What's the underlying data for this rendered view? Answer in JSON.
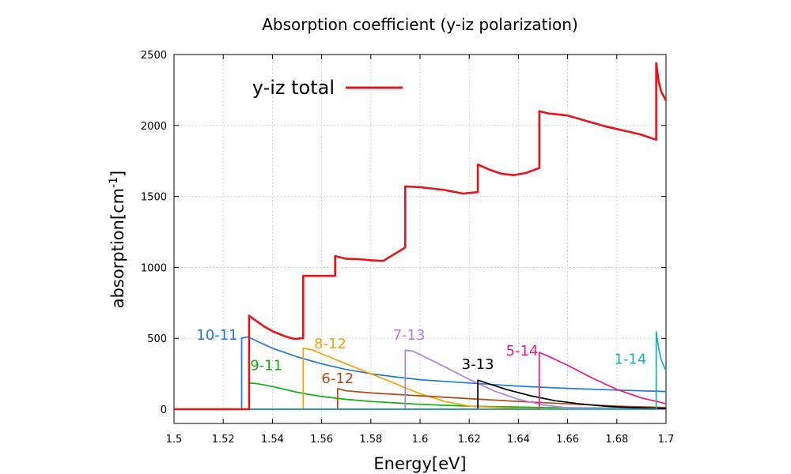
{
  "chart_data": {
    "type": "line",
    "title": "Absorption coefficient (y-iz polarization)",
    "xlabel": "Energy[eV]",
    "ylabel_base": "absorption[cm",
    "ylabel_sup": "-1",
    "ylabel_close": "]",
    "xlim": [
      1.5,
      1.7
    ],
    "ylim": [
      -100,
      2500
    ],
    "xticks": [
      "1.5",
      "1.52",
      "1.54",
      "1.56",
      "1.58",
      "1.6",
      "1.62",
      "1.64",
      "1.66",
      "1.68",
      "1.7"
    ],
    "yticks": [
      "0",
      "500",
      "1000",
      "1500",
      "2000",
      "2500"
    ],
    "grid": true,
    "legend_position": "top-left",
    "series": [
      {
        "name": "y-iz total",
        "color": "#e8141a",
        "points": [
          [
            1.5,
            0
          ],
          [
            1.5305,
            0
          ],
          [
            1.5305,
            660
          ],
          [
            1.532,
            640
          ],
          [
            1.536,
            590
          ],
          [
            1.54,
            550
          ],
          [
            1.545,
            515
          ],
          [
            1.549,
            495
          ],
          [
            1.552,
            500
          ],
          [
            1.5525,
            500
          ],
          [
            1.5525,
            940
          ],
          [
            1.556,
            940
          ],
          [
            1.5655,
            940
          ],
          [
            1.5655,
            1080
          ],
          [
            1.57,
            1060
          ],
          [
            1.575,
            1058
          ],
          [
            1.58,
            1050
          ],
          [
            1.585,
            1045
          ],
          [
            1.594,
            1140
          ],
          [
            1.594,
            1570
          ],
          [
            1.6,
            1565
          ],
          [
            1.61,
            1545
          ],
          [
            1.6175,
            1520
          ],
          [
            1.6235,
            1530
          ],
          [
            1.6235,
            1725
          ],
          [
            1.628,
            1690
          ],
          [
            1.633,
            1660
          ],
          [
            1.638,
            1650
          ],
          [
            1.643,
            1665
          ],
          [
            1.6485,
            1700
          ],
          [
            1.6485,
            2100
          ],
          [
            1.652,
            2085
          ],
          [
            1.656,
            2078
          ],
          [
            1.66,
            2070
          ],
          [
            1.665,
            2045
          ],
          [
            1.67,
            2020
          ],
          [
            1.675,
            1995
          ],
          [
            1.68,
            1975
          ],
          [
            1.685,
            1955
          ],
          [
            1.69,
            1935
          ],
          [
            1.695,
            1905
          ],
          [
            1.696,
            1900
          ],
          [
            1.696,
            2440
          ],
          [
            1.697,
            2310
          ],
          [
            1.698,
            2240
          ],
          [
            1.7,
            2175
          ]
        ]
      },
      {
        "name": "10-11",
        "color": "#1f77e0",
        "points": [
          [
            1.5,
            0
          ],
          [
            1.5275,
            0
          ],
          [
            1.5275,
            500
          ],
          [
            1.53,
            510
          ],
          [
            1.535,
            470
          ],
          [
            1.54,
            430
          ],
          [
            1.55,
            370
          ],
          [
            1.56,
            320
          ],
          [
            1.57,
            280
          ],
          [
            1.58,
            250
          ],
          [
            1.59,
            228
          ],
          [
            1.6,
            208
          ],
          [
            1.62,
            185
          ],
          [
            1.64,
            163
          ],
          [
            1.66,
            147
          ],
          [
            1.68,
            135
          ],
          [
            1.7,
            125
          ]
        ]
      },
      {
        "name": "9-11",
        "color": "#10b010",
        "points": [
          [
            1.5,
            0
          ],
          [
            1.5305,
            0
          ],
          [
            1.5305,
            185
          ],
          [
            1.534,
            180
          ],
          [
            1.54,
            160
          ],
          [
            1.55,
            120
          ],
          [
            1.56,
            90
          ],
          [
            1.57,
            70
          ],
          [
            1.58,
            55
          ],
          [
            1.6,
            35
          ],
          [
            1.62,
            22
          ],
          [
            1.65,
            12
          ],
          [
            1.7,
            5
          ]
        ]
      },
      {
        "name": "8-12",
        "color": "#f5a20a",
        "points": [
          [
            1.5,
            0
          ],
          [
            1.5525,
            0
          ],
          [
            1.5525,
            430
          ],
          [
            1.556,
            420
          ],
          [
            1.56,
            390
          ],
          [
            1.57,
            320
          ],
          [
            1.58,
            250
          ],
          [
            1.59,
            180
          ],
          [
            1.6,
            110
          ],
          [
            1.61,
            55
          ],
          [
            1.62,
            22
          ],
          [
            1.64,
            6
          ],
          [
            1.7,
            0
          ]
        ]
      },
      {
        "name": "6-12",
        "color": "#b04a15",
        "points": [
          [
            1.5,
            0
          ],
          [
            1.5665,
            0
          ],
          [
            1.5665,
            145
          ],
          [
            1.57,
            130
          ],
          [
            1.58,
            115
          ],
          [
            1.6,
            95
          ],
          [
            1.62,
            75
          ],
          [
            1.64,
            55
          ],
          [
            1.66,
            38
          ],
          [
            1.68,
            22
          ],
          [
            1.7,
            12
          ]
        ]
      },
      {
        "name": "7-13",
        "color": "#b07ef0",
        "points": [
          [
            1.5,
            0
          ],
          [
            1.594,
            0
          ],
          [
            1.594,
            415
          ],
          [
            1.597,
            410
          ],
          [
            1.6,
            385
          ],
          [
            1.61,
            300
          ],
          [
            1.62,
            210
          ],
          [
            1.63,
            130
          ],
          [
            1.64,
            70
          ],
          [
            1.65,
            30
          ],
          [
            1.66,
            10
          ],
          [
            1.7,
            0
          ]
        ]
      },
      {
        "name": "3-13",
        "color": "#000000",
        "points": [
          [
            1.5,
            0
          ],
          [
            1.6235,
            0
          ],
          [
            1.6235,
            205
          ],
          [
            1.627,
            185
          ],
          [
            1.635,
            140
          ],
          [
            1.645,
            95
          ],
          [
            1.655,
            60
          ],
          [
            1.665,
            38
          ],
          [
            1.675,
            22
          ],
          [
            1.685,
            12
          ],
          [
            1.7,
            6
          ]
        ]
      },
      {
        "name": "5-14",
        "color": "#e8198c",
        "points": [
          [
            1.5,
            0
          ],
          [
            1.6485,
            0
          ],
          [
            1.6485,
            400
          ],
          [
            1.652,
            375
          ],
          [
            1.66,
            310
          ],
          [
            1.67,
            220
          ],
          [
            1.68,
            140
          ],
          [
            1.69,
            80
          ],
          [
            1.7,
            40
          ]
        ]
      },
      {
        "name": "1-14",
        "color": "#18b0b0",
        "points": [
          [
            1.5,
            0
          ],
          [
            1.696,
            0
          ],
          [
            1.696,
            545
          ],
          [
            1.697,
            430
          ],
          [
            1.698,
            350
          ],
          [
            1.7,
            270
          ]
        ]
      }
    ],
    "labels": [
      {
        "text": "10-11",
        "series": "10-11",
        "x": 1.5175,
        "y": 490
      },
      {
        "text": "9-11",
        "series": "9-11",
        "x": 1.5375,
        "y": 275
      },
      {
        "text": "8-12",
        "series": "8-12",
        "x": 1.5635,
        "y": 430
      },
      {
        "text": "6-12",
        "series": "6-12",
        "x": 1.5665,
        "y": 185
      },
      {
        "text": "7-13",
        "series": "7-13",
        "x": 1.5955,
        "y": 490
      },
      {
        "text": "3-13",
        "series": "3-13",
        "x": 1.6235,
        "y": 285
      },
      {
        "text": "5-14",
        "series": "5-14",
        "x": 1.6415,
        "y": 380
      },
      {
        "text": "1-14",
        "series": "1-14",
        "x": 1.6855,
        "y": 320
      }
    ]
  }
}
